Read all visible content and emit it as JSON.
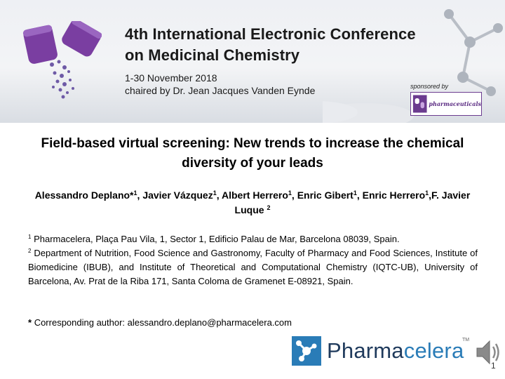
{
  "banner": {
    "title_line1": "4th International Electronic Conference",
    "title_line2": "on Medicinal Chemistry",
    "dates": "1-30 November 2018",
    "chair": "chaired by Dr. Jean Jacques Vanden Eynde",
    "sponsor_label": "sponsored by",
    "sponsor_name": "pharmaceuticals"
  },
  "paper": {
    "title": "Field-based virtual screening: New trends to increase the chemical diversity of your leads",
    "authors": [
      {
        "name": "Alessandro Deplano*",
        "sup": "1",
        "sep": ", "
      },
      {
        "name": "Javier Vázquez",
        "sup": "1",
        "sep": ", "
      },
      {
        "name": "Albert Herrero",
        "sup": "1",
        "sep": ", "
      },
      {
        "name": "Enric Gibert",
        "sup": "1",
        "sep": ", "
      },
      {
        "name": "Enric Herrero",
        "sup": "1",
        "sep": ","
      },
      {
        "name": "F. Javier Luque ",
        "sup": "2",
        "sep": ""
      }
    ],
    "affiliations": [
      {
        "num": "1",
        "text": "Pharmacelera, Plaça Pau Vila, 1, Sector 1, Edificio Palau de Mar, Barcelona 08039, Spain."
      },
      {
        "num": "2",
        "text": "Department of Nutrition, Food Science and Gastronomy, Faculty of Pharmacy and Food Sciences, Institute of Biomedicine (IBUB), and Institute of Theoretical and Computational Chemistry (IQTC-UB), University of Barcelona, Av. Prat de la Riba 171, Santa Coloma de Gramenet E-08921, Spain."
      }
    ],
    "corresponding_mark": "*",
    "corresponding": "Corresponding author: alessandro.deplano@pharmacelera.com"
  },
  "footer": {
    "logo_part1": "Pharma",
    "logo_part2": "celera",
    "tm": "TM",
    "page_number": "1"
  },
  "colors": {
    "logo_dark": "#1f3a5c",
    "logo_blue": "#2a7cb7",
    "pill_purple": "#7a3ea1"
  }
}
